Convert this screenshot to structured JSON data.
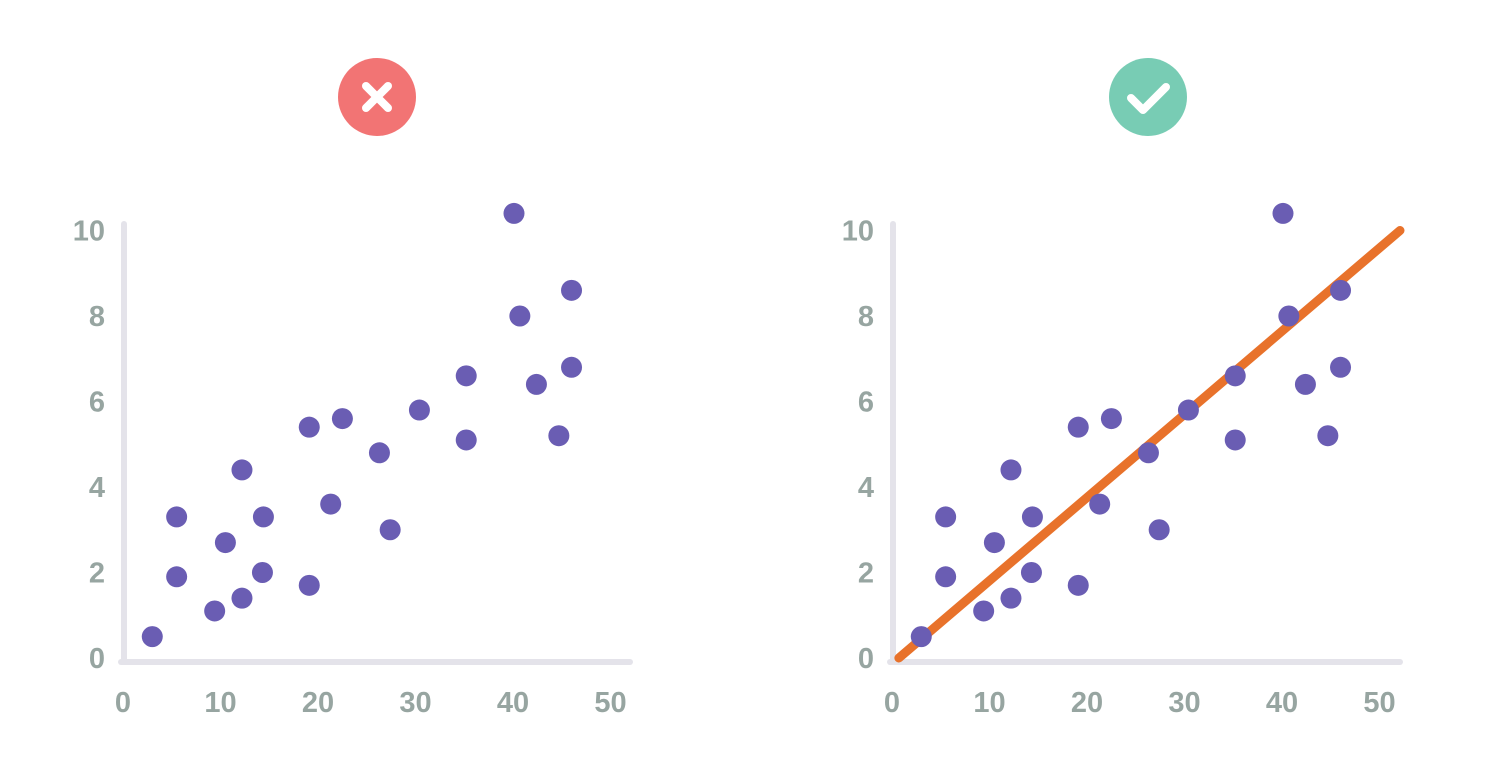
{
  "colors": {
    "axis": "#e4e3ea",
    "tick_text": "#97a5a1",
    "point": "#6a5db3",
    "trendline": "#e8722b",
    "bad_badge": "#f27474",
    "good_badge": "#78ccb4",
    "badge_icon": "#ffffff"
  },
  "badges": [
    {
      "icon": "close-icon"
    },
    {
      "icon": "check-icon"
    }
  ],
  "chart_data": [
    {
      "type": "scatter",
      "title": "",
      "xlabel": "",
      "ylabel": "",
      "xlim": [
        0,
        52
      ],
      "ylim": [
        0,
        10.5
      ],
      "xticks": [
        "0",
        "10",
        "20",
        "30",
        "40",
        "50"
      ],
      "yticks": [
        "0",
        "2",
        "4",
        "6",
        "8",
        "10"
      ],
      "grid": false,
      "series": [
        {
          "points": [
            [
              2.9,
              0.5
            ],
            [
              5.4,
              3.3
            ],
            [
              5.4,
              1.9
            ],
            [
              9.3,
              1.1
            ],
            [
              10.4,
              2.7
            ],
            [
              12.1,
              4.4
            ],
            [
              12.1,
              1.4
            ],
            [
              14.2,
              2.0
            ],
            [
              14.3,
              3.3
            ],
            [
              19.0,
              5.4
            ],
            [
              19.0,
              1.7
            ],
            [
              21.2,
              3.6
            ],
            [
              22.4,
              5.6
            ],
            [
              26.2,
              4.8
            ],
            [
              27.3,
              3.0
            ],
            [
              30.3,
              5.8
            ],
            [
              35.1,
              6.6
            ],
            [
              35.1,
              5.1
            ],
            [
              40.0,
              10.4
            ],
            [
              40.6,
              8.0
            ],
            [
              42.3,
              6.4
            ],
            [
              44.6,
              5.2
            ],
            [
              45.9,
              8.6
            ],
            [
              45.9,
              6.8
            ]
          ]
        }
      ]
    },
    {
      "type": "scatter",
      "title": "",
      "xlabel": "",
      "ylabel": "",
      "xlim": [
        0,
        52
      ],
      "ylim": [
        0,
        10.5
      ],
      "xticks": [
        "0",
        "10",
        "20",
        "30",
        "40",
        "50"
      ],
      "yticks": [
        "0",
        "2",
        "4",
        "6",
        "8",
        "10"
      ],
      "grid": false,
      "series": [
        {
          "points": [
            [
              2.9,
              0.5
            ],
            [
              5.4,
              3.3
            ],
            [
              5.4,
              1.9
            ],
            [
              9.3,
              1.1
            ],
            [
              10.4,
              2.7
            ],
            [
              12.1,
              4.4
            ],
            [
              12.1,
              1.4
            ],
            [
              14.2,
              2.0
            ],
            [
              14.3,
              3.3
            ],
            [
              19.0,
              5.4
            ],
            [
              19.0,
              1.7
            ],
            [
              21.2,
              3.6
            ],
            [
              22.4,
              5.6
            ],
            [
              26.2,
              4.8
            ],
            [
              27.3,
              3.0
            ],
            [
              30.3,
              5.8
            ],
            [
              35.1,
              6.6
            ],
            [
              35.1,
              5.1
            ],
            [
              40.0,
              10.4
            ],
            [
              40.6,
              8.0
            ],
            [
              42.3,
              6.4
            ],
            [
              44.6,
              5.2
            ],
            [
              45.9,
              8.6
            ],
            [
              45.9,
              6.8
            ]
          ]
        }
      ],
      "trendline": {
        "from": [
          0.6,
          0.0
        ],
        "to": [
          52.0,
          10.0
        ]
      }
    }
  ]
}
